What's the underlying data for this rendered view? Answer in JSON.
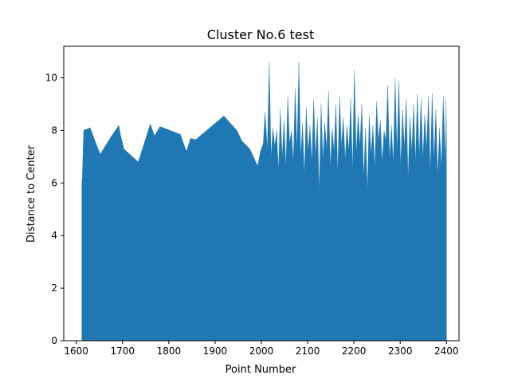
{
  "chart_data": {
    "type": "area",
    "title": "Cluster No.6 test",
    "xlabel": "Point Number",
    "ylabel": "Distance to Center",
    "xlim": [
      1573,
      2427
    ],
    "ylim": [
      0,
      11.2
    ],
    "xticks": [
      1600,
      1700,
      1800,
      1900,
      2000,
      2100,
      2200,
      2300,
      2400
    ],
    "yticks": [
      0,
      2,
      4,
      6,
      8,
      10
    ],
    "grid": false,
    "color": "#1f77b4",
    "series": [
      {
        "x": [
          1612,
          1613,
          1616,
          1630,
          1645,
          1652,
          1673,
          1692,
          1696,
          1703,
          1734,
          1760,
          1769,
          1781,
          1825,
          1838,
          1847,
          1858,
          1919,
          1947,
          1958,
          1975,
          1992,
          1998,
          2004,
          2008,
          2013,
          2017,
          2021,
          2025,
          2029,
          2033,
          2037,
          2041,
          2045,
          2049,
          2053,
          2057,
          2061,
          2065,
          2069,
          2073,
          2077,
          2081,
          2085,
          2089,
          2093,
          2097,
          2101,
          2105,
          2109,
          2113,
          2117,
          2121,
          2125,
          2129,
          2133,
          2137,
          2141,
          2145,
          2149,
          2153,
          2157,
          2161,
          2165,
          2169,
          2173,
          2177,
          2181,
          2185,
          2189,
          2193,
          2197,
          2201,
          2205,
          2209,
          2213,
          2217,
          2221,
          2225,
          2229,
          2233,
          2237,
          2241,
          2245,
          2249,
          2253,
          2257,
          2261,
          2265,
          2269,
          2273,
          2277,
          2281,
          2285,
          2289,
          2293,
          2297,
          2301,
          2305,
          2309,
          2313,
          2317,
          2321,
          2325,
          2329,
          2333,
          2337,
          2341,
          2345,
          2349,
          2353,
          2357,
          2361,
          2365,
          2369,
          2373,
          2377,
          2381,
          2385,
          2389,
          2393,
          2398,
          2399,
          2400
        ],
        "y": [
          6.1,
          6.2,
          8.0,
          8.1,
          7.4,
          7.1,
          7.7,
          8.2,
          7.8,
          7.3,
          6.8,
          8.25,
          7.8,
          8.15,
          7.85,
          7.2,
          7.7,
          7.65,
          8.55,
          8.0,
          7.6,
          7.3,
          6.65,
          7.2,
          7.5,
          8.7,
          7.3,
          10.6,
          7.0,
          8.1,
          7.4,
          8.0,
          6.5,
          8.8,
          7.0,
          8.4,
          6.6,
          9.3,
          7.5,
          8.0,
          6.8,
          9.6,
          7.3,
          10.6,
          7.0,
          8.3,
          6.3,
          8.9,
          7.2,
          8.2,
          6.8,
          9.2,
          7.0,
          8.5,
          5.7,
          9.0,
          6.9,
          8.3,
          7.3,
          9.5,
          6.6,
          8.1,
          7.2,
          9.0,
          6.4,
          9.3,
          7.4,
          8.5,
          6.9,
          8.2,
          7.2,
          9.2,
          6.5,
          10.3,
          7.1,
          8.6,
          7.4,
          9.0,
          6.2,
          8.1,
          5.7,
          8.6,
          7.1,
          8.2,
          6.6,
          9.1,
          7.6,
          8.4,
          6.8,
          8.0,
          7.6,
          9.7,
          6.9,
          8.2,
          6.7,
          10.0,
          7.2,
          9.9,
          6.6,
          8.8,
          7.3,
          9.2,
          6.2,
          8.5,
          7.2,
          9.0,
          6.8,
          9.4,
          7.0,
          9.2,
          6.9,
          8.6,
          7.3,
          9.3,
          6.4,
          9.4,
          6.9,
          8.8,
          6.3,
          8.1,
          6.6,
          9.3,
          6.7,
          9.2,
          7.6
        ]
      }
    ]
  }
}
